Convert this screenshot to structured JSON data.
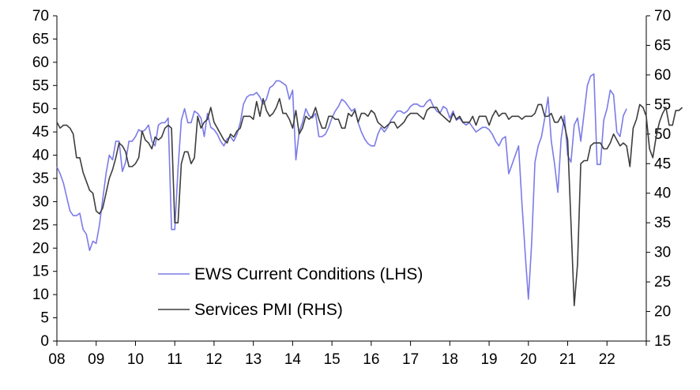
{
  "chart_data": {
    "type": "line",
    "title": "",
    "xlabel": "",
    "ylabel_left": "",
    "ylabel_right": "",
    "grid": false,
    "legend_position": "center-left",
    "x_start": 2008.0,
    "x_step": 0.0833333,
    "xlim": [
      2008,
      2023
    ],
    "x_ticks": [
      "08",
      "09",
      "10",
      "11",
      "12",
      "13",
      "14",
      "15",
      "16",
      "17",
      "18",
      "19",
      "20",
      "21",
      "22"
    ],
    "y_left": {
      "min": 0,
      "max": 70,
      "step": 5,
      "ticks": [
        "0",
        "5",
        "10",
        "15",
        "20",
        "25",
        "30",
        "35",
        "40",
        "45",
        "50",
        "55",
        "60",
        "65",
        "70"
      ]
    },
    "y_right": {
      "min": 15,
      "max": 70,
      "step": 5,
      "ticks": [
        "15",
        "20",
        "25",
        "30",
        "35",
        "40",
        "45",
        "50",
        "55",
        "60",
        "65",
        "70"
      ]
    },
    "series": [
      {
        "name": "EWS Current Conditions (LHS)",
        "axis": "left",
        "color": "#7b7be8",
        "values": [
          37.5,
          36,
          34,
          31,
          28,
          27,
          27,
          27.5,
          24,
          23,
          19.5,
          21.5,
          21,
          25,
          30.5,
          36,
          40,
          39,
          43,
          43,
          36.5,
          38.5,
          43,
          43,
          44,
          45.5,
          45,
          45.5,
          46.5,
          43,
          42,
          46.5,
          47,
          47,
          48,
          24,
          24,
          37,
          47.5,
          50,
          47,
          47,
          49.5,
          49,
          48,
          44,
          49,
          46,
          45.5,
          44.5,
          43,
          42,
          43.5,
          44,
          43,
          44.5,
          47,
          51,
          52.5,
          53,
          53,
          53.5,
          52.5,
          51,
          52,
          54.5,
          55,
          56,
          56,
          55.5,
          55,
          52,
          54,
          39,
          45,
          47,
          50,
          48.5,
          48,
          49,
          44,
          44,
          44.5,
          46,
          48,
          49.5,
          50.5,
          52,
          51.5,
          50.5,
          49.5,
          50,
          47,
          45,
          43.5,
          42.5,
          42,
          42,
          44.5,
          46,
          45,
          46,
          47.5,
          48.5,
          49.5,
          49.5,
          49,
          49.5,
          50.5,
          51,
          51,
          50.5,
          50.5,
          51.5,
          52,
          50.5,
          49.5,
          49,
          50.5,
          50,
          48,
          49.5,
          47.5,
          48,
          47,
          46.5,
          47,
          46,
          45,
          45.5,
          46,
          46,
          45.5,
          44.5,
          43,
          42,
          43.5,
          44,
          36,
          38,
          40,
          42,
          30,
          19,
          9,
          21,
          38.5,
          42,
          44,
          48,
          52.5,
          43,
          38,
          32,
          43.5,
          48.5,
          40,
          38.5,
          46.5,
          48,
          43,
          49,
          55,
          57,
          57.5,
          38,
          38,
          47.5,
          50,
          54,
          53,
          45,
          44,
          48.5,
          50
        ]
      },
      {
        "name": "Services PMI (RHS)",
        "axis": "right",
        "color": "#3d3d3d",
        "values": [
          52,
          51,
          51.5,
          51.5,
          51,
          50,
          46,
          46,
          43.5,
          42,
          40.5,
          40,
          37,
          36.5,
          37.5,
          40,
          42.5,
          44,
          46,
          48.5,
          48,
          47,
          44.5,
          44.5,
          45,
          46,
          50.5,
          49,
          48.5,
          47.5,
          49.5,
          49,
          49.5,
          51,
          51.5,
          51,
          35,
          35,
          45,
          47,
          47,
          45,
          46,
          53,
          51,
          52,
          52.5,
          54.5,
          52,
          51,
          50,
          49,
          48.5,
          50,
          49.5,
          50.5,
          51,
          53,
          53,
          53,
          52.5,
          55.5,
          53,
          56,
          54,
          53,
          53.5,
          54.5,
          56,
          53.5,
          53.5,
          52.5,
          51,
          54,
          50,
          51,
          53,
          52.5,
          53,
          54.5,
          52.5,
          51,
          51,
          53,
          53,
          52.5,
          52.5,
          51,
          51,
          53.5,
          53,
          54,
          52,
          53.5,
          53.5,
          53,
          54,
          53.5,
          52,
          51.5,
          51,
          51.5,
          52,
          52,
          51,
          51.5,
          52,
          53,
          53.5,
          53.5,
          53.5,
          53,
          52.5,
          54,
          54.5,
          54.5,
          54.5,
          53.5,
          53,
          52.5,
          52,
          53.5,
          52.5,
          53,
          52,
          52,
          52,
          53,
          51.5,
          53,
          53,
          53,
          51.5,
          53,
          54,
          53,
          53.5,
          53.5,
          52.5,
          53,
          53,
          53,
          52.5,
          53,
          53,
          53,
          53.5,
          55,
          55,
          53,
          53,
          53.5,
          52,
          52,
          53,
          51.5,
          49,
          35,
          21,
          28,
          45,
          45.5,
          45.5,
          48,
          48.5,
          48.5,
          48.5,
          47.5,
          47.5,
          48.5,
          50,
          49,
          48,
          48.5,
          48,
          44.5,
          51,
          52.5,
          55,
          54.5,
          53,
          47.5,
          46,
          49.5,
          52,
          53.5,
          54.5,
          51.5,
          51.5,
          54,
          54,
          54.5
        ]
      }
    ]
  }
}
